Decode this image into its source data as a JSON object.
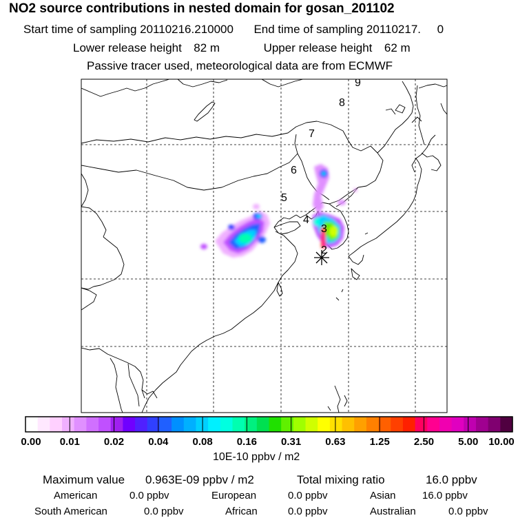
{
  "header": {
    "title": "NO2 source contributions in nested domain for gosan_201102",
    "start_label": "Start time of sampling",
    "start_value": "20110216.210000",
    "end_label": "End time of sampling",
    "end_value": "20110217.     0",
    "lower_label": "Lower release height",
    "lower_value": "82 m",
    "upper_label": "Upper release height",
    "upper_value": "62 m",
    "note": "Passive tracer used, meteorological data are from ECMWF"
  },
  "map": {
    "trajectory_labels": [
      "2",
      "3",
      "4",
      "5",
      "6",
      "7",
      "8",
      "9"
    ],
    "receptor_icon": "asterisk-receptor-marker"
  },
  "colorbar": {
    "ticks": [
      "0.00",
      "0.01",
      "0.02",
      "0.04",
      "0.08",
      "0.16",
      "0.31",
      "0.63",
      "1.25",
      "2.50",
      "5.00",
      "10.00"
    ],
    "unit": "10E-10 ppbv / m2",
    "colors": [
      "#ffffff",
      "#ffe8ff",
      "#ffd0ff",
      "#f0b0ff",
      "#e090ff",
      "#d070ff",
      "#c050ff",
      "#a020f0",
      "#7000ff",
      "#5020ff",
      "#3040ff",
      "#2060ff",
      "#0090ff",
      "#00b0ff",
      "#00d0ff",
      "#00f0ff",
      "#00ffe0",
      "#00ffb0",
      "#00f080",
      "#00e050",
      "#20e000",
      "#60f000",
      "#a0ff00",
      "#d0ff00",
      "#ffff00",
      "#ffe000",
      "#ffc000",
      "#ffa000",
      "#ff8000",
      "#ff6000",
      "#ff4000",
      "#ff2000",
      "#ff0060",
      "#ff0090",
      "#f000b0",
      "#e000c0",
      "#c000b0",
      "#a00090",
      "#800070",
      "#500040"
    ]
  },
  "footer": {
    "max_label": "Maximum value",
    "max_value": "0.963E-09 ppbv / m2",
    "total_label": "Total mixing ratio",
    "total_value": "16.0 ppbv",
    "regions": [
      {
        "name": "American",
        "value": "0.0 ppbv"
      },
      {
        "name": "European",
        "value": "0.0 ppbv"
      },
      {
        "name": "Asian",
        "value": "16.0 ppbv"
      },
      {
        "name": "South American",
        "value": "0.0 ppbv"
      },
      {
        "name": "African",
        "value": "0.0 ppbv"
      },
      {
        "name": "Australian",
        "value": "0.0 ppbv"
      }
    ]
  }
}
